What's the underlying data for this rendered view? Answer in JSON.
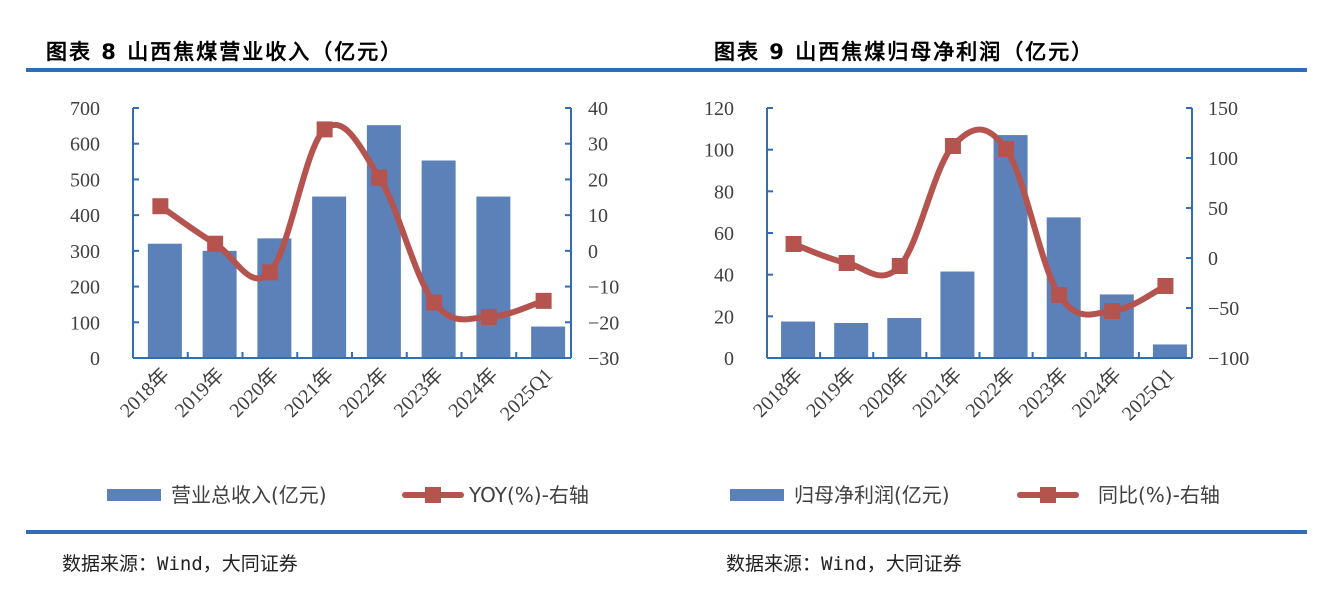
{
  "figures": [
    {
      "title": "图表 8  山西焦煤营业收入（亿元）",
      "source": "数据来源：Wind，大同证券"
    },
    {
      "title": "图表 9  山西焦煤归母净利润（亿元）",
      "source": "数据来源：Wind，大同证券"
    }
  ],
  "colors": {
    "bar": "#5b81b8",
    "line": "#b5534f",
    "axis": "#2f6db5",
    "rule": "#2f6db5"
  },
  "chart_data": [
    {
      "type": "bar",
      "title": "山西焦煤营业收入（亿元）",
      "categories": [
        "2018年",
        "2019年",
        "2020年",
        "2021年",
        "2022年",
        "2023年",
        "2024年",
        "2025Q1"
      ],
      "series": [
        {
          "name": "营业总收入(亿元)",
          "kind": "bar",
          "axis": "left",
          "values": [
            320,
            300,
            335,
            452,
            652,
            553,
            452,
            88
          ]
        },
        {
          "name": "YOY(%)-右轴",
          "kind": "line",
          "axis": "right",
          "values": [
            12.5,
            2,
            -6,
            34,
            20.5,
            -14.5,
            -18.5,
            -14
          ]
        }
      ],
      "ylim_left": [
        0,
        700
      ],
      "yticks_left": [
        0,
        100,
        200,
        300,
        400,
        500,
        600,
        700
      ],
      "ylim_right": [
        -30,
        40
      ],
      "yticks_right": [
        -30,
        -20,
        -10,
        0,
        10,
        20,
        30,
        40
      ],
      "legend": [
        "营业总收入(亿元)",
        "YOY(%)-右轴"
      ],
      "legend_position": "bottom",
      "grid": false
    },
    {
      "type": "bar",
      "title": "山西焦煤归母净利润（亿元）",
      "categories": [
        "2018年",
        "2019年",
        "2020年",
        "2021年",
        "2022年",
        "2023年",
        "2024年",
        "2025Q1"
      ],
      "series": [
        {
          "name": "归母净利润(亿元)",
          "kind": "bar",
          "axis": "left",
          "values": [
            17.5,
            16.8,
            19.2,
            41.5,
            107,
            67.5,
            30.5,
            6.5
          ]
        },
        {
          "name": "同比(%)-右轴",
          "kind": "line",
          "axis": "right",
          "values": [
            14,
            -5,
            -8,
            112,
            109,
            -37,
            -53,
            -28
          ]
        }
      ],
      "ylim_left": [
        0,
        120
      ],
      "yticks_left": [
        0,
        20,
        40,
        60,
        80,
        100,
        120
      ],
      "ylim_right": [
        -100,
        150
      ],
      "yticks_right": [
        -100,
        -50,
        0,
        50,
        100,
        150
      ],
      "legend": [
        "归母净利润(亿元)",
        "同比(%)-右轴"
      ],
      "legend_position": "bottom",
      "grid": false
    }
  ]
}
